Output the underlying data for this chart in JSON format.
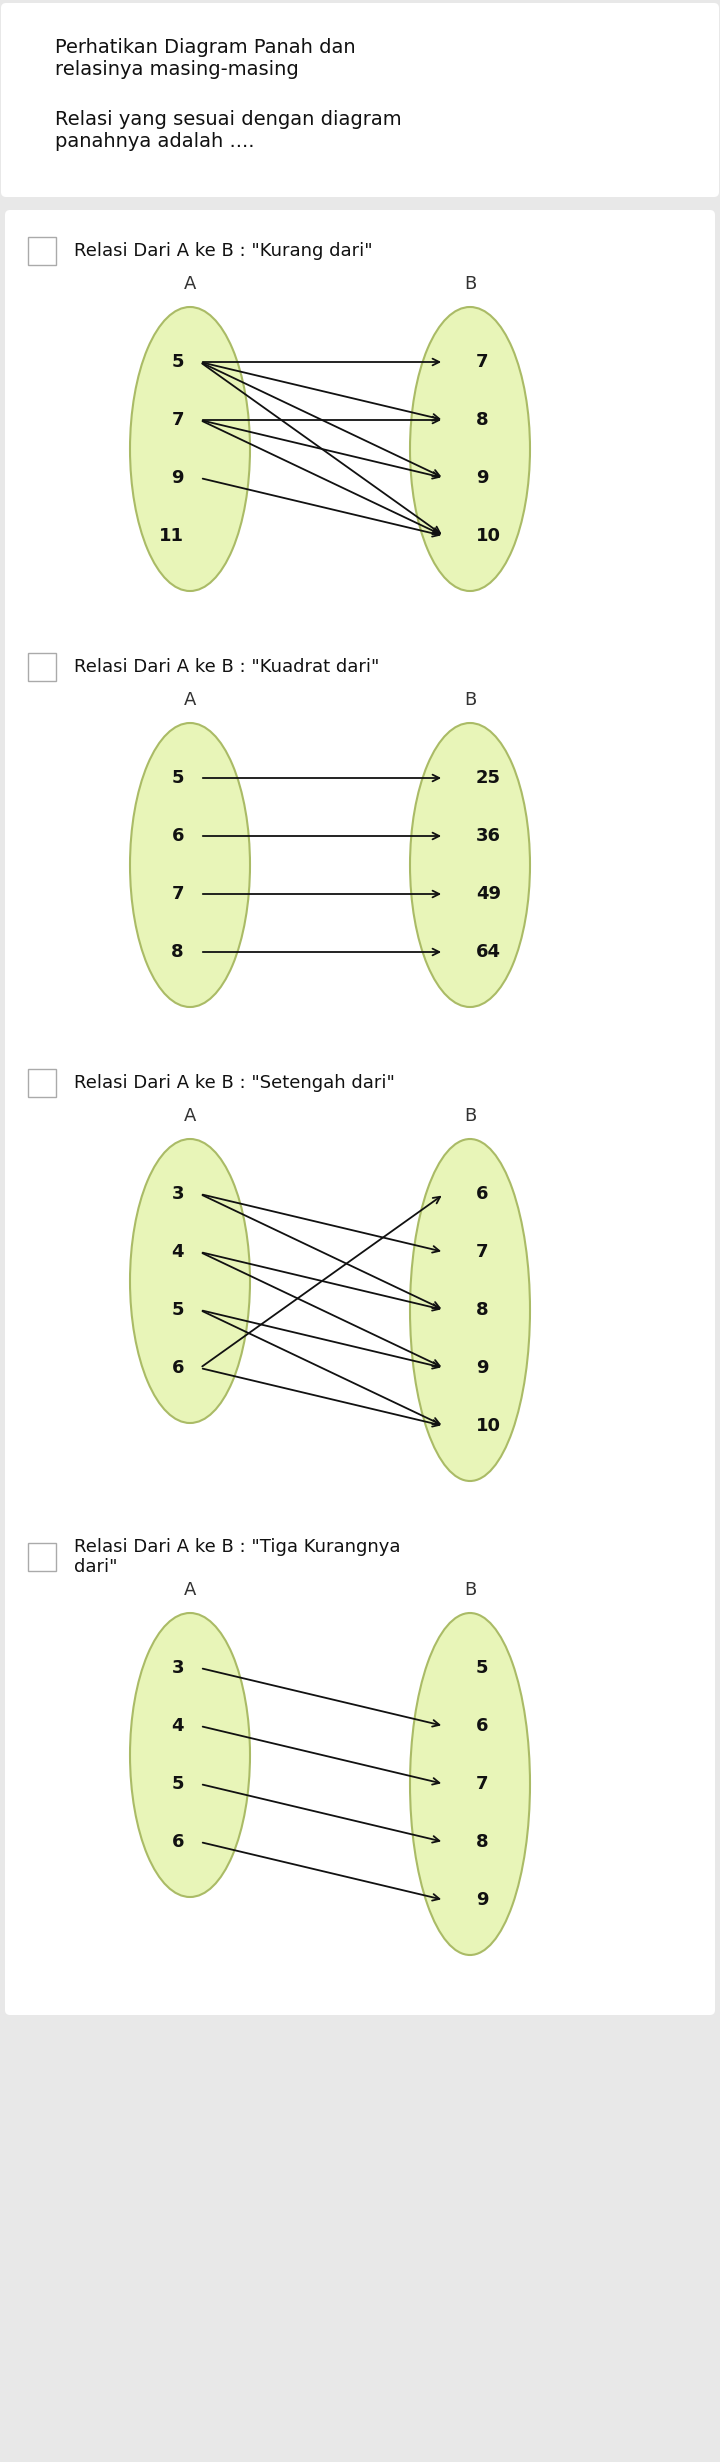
{
  "bg_color": "#e8e8e8",
  "title_bg": "#ffffff",
  "option_bg": "#ffffff",
  "title_text": "Perhatikan Diagram Panah dan\nrelasinya masing-masing",
  "subtitle_text": "Relasi yang sesuai dengan diagram\npanahnya adalah ....",
  "options": [
    {
      "label": "Relasi Dari A ke B : \"Kurang dari\"",
      "A_label": "A",
      "B_label": "B",
      "A_elements": [
        "5",
        "7",
        "9",
        "11"
      ],
      "B_elements": [
        "7",
        "8",
        "9",
        "10"
      ],
      "arrows": [
        [
          0,
          0
        ],
        [
          0,
          1
        ],
        [
          0,
          2
        ],
        [
          0,
          3
        ],
        [
          1,
          1
        ],
        [
          1,
          2
        ],
        [
          1,
          3
        ],
        [
          2,
          3
        ]
      ]
    },
    {
      "label": "Relasi Dari A ke B : \"Kuadrat dari\"",
      "A_label": "A",
      "B_label": "B",
      "A_elements": [
        "5",
        "6",
        "7",
        "8"
      ],
      "B_elements": [
        "25",
        "36",
        "49",
        "64"
      ],
      "arrows": [
        [
          0,
          0
        ],
        [
          1,
          1
        ],
        [
          2,
          2
        ],
        [
          3,
          3
        ]
      ]
    },
    {
      "label": "Relasi Dari A ke B : \"Setengah dari\"",
      "A_label": "A",
      "B_label": "B",
      "A_elements": [
        "3",
        "4",
        "5",
        "6"
      ],
      "B_elements": [
        "6",
        "7",
        "8",
        "9",
        "10"
      ],
      "arrows": [
        [
          0,
          1
        ],
        [
          0,
          2
        ],
        [
          1,
          2
        ],
        [
          1,
          3
        ],
        [
          2,
          3
        ],
        [
          2,
          4
        ],
        [
          3,
          0
        ],
        [
          3,
          4
        ]
      ]
    },
    {
      "label": "Relasi Dari A ke B : \"Tiga Kurangnya\ndari\"",
      "A_label": "A",
      "B_label": "B",
      "A_elements": [
        "3",
        "4",
        "5",
        "6"
      ],
      "B_elements": [
        "5",
        "6",
        "7",
        "8",
        "9"
      ],
      "arrows": [
        [
          0,
          1
        ],
        [
          1,
          2
        ],
        [
          2,
          3
        ],
        [
          3,
          4
        ]
      ]
    }
  ],
  "ellipse_color": "#e8f5b8",
  "ellipse_edge": "#aabb66",
  "arrow_color": "#111111",
  "text_color": "#111111",
  "label_fontsize": 13,
  "elem_fontsize": 13,
  "header_fontsize": 13
}
